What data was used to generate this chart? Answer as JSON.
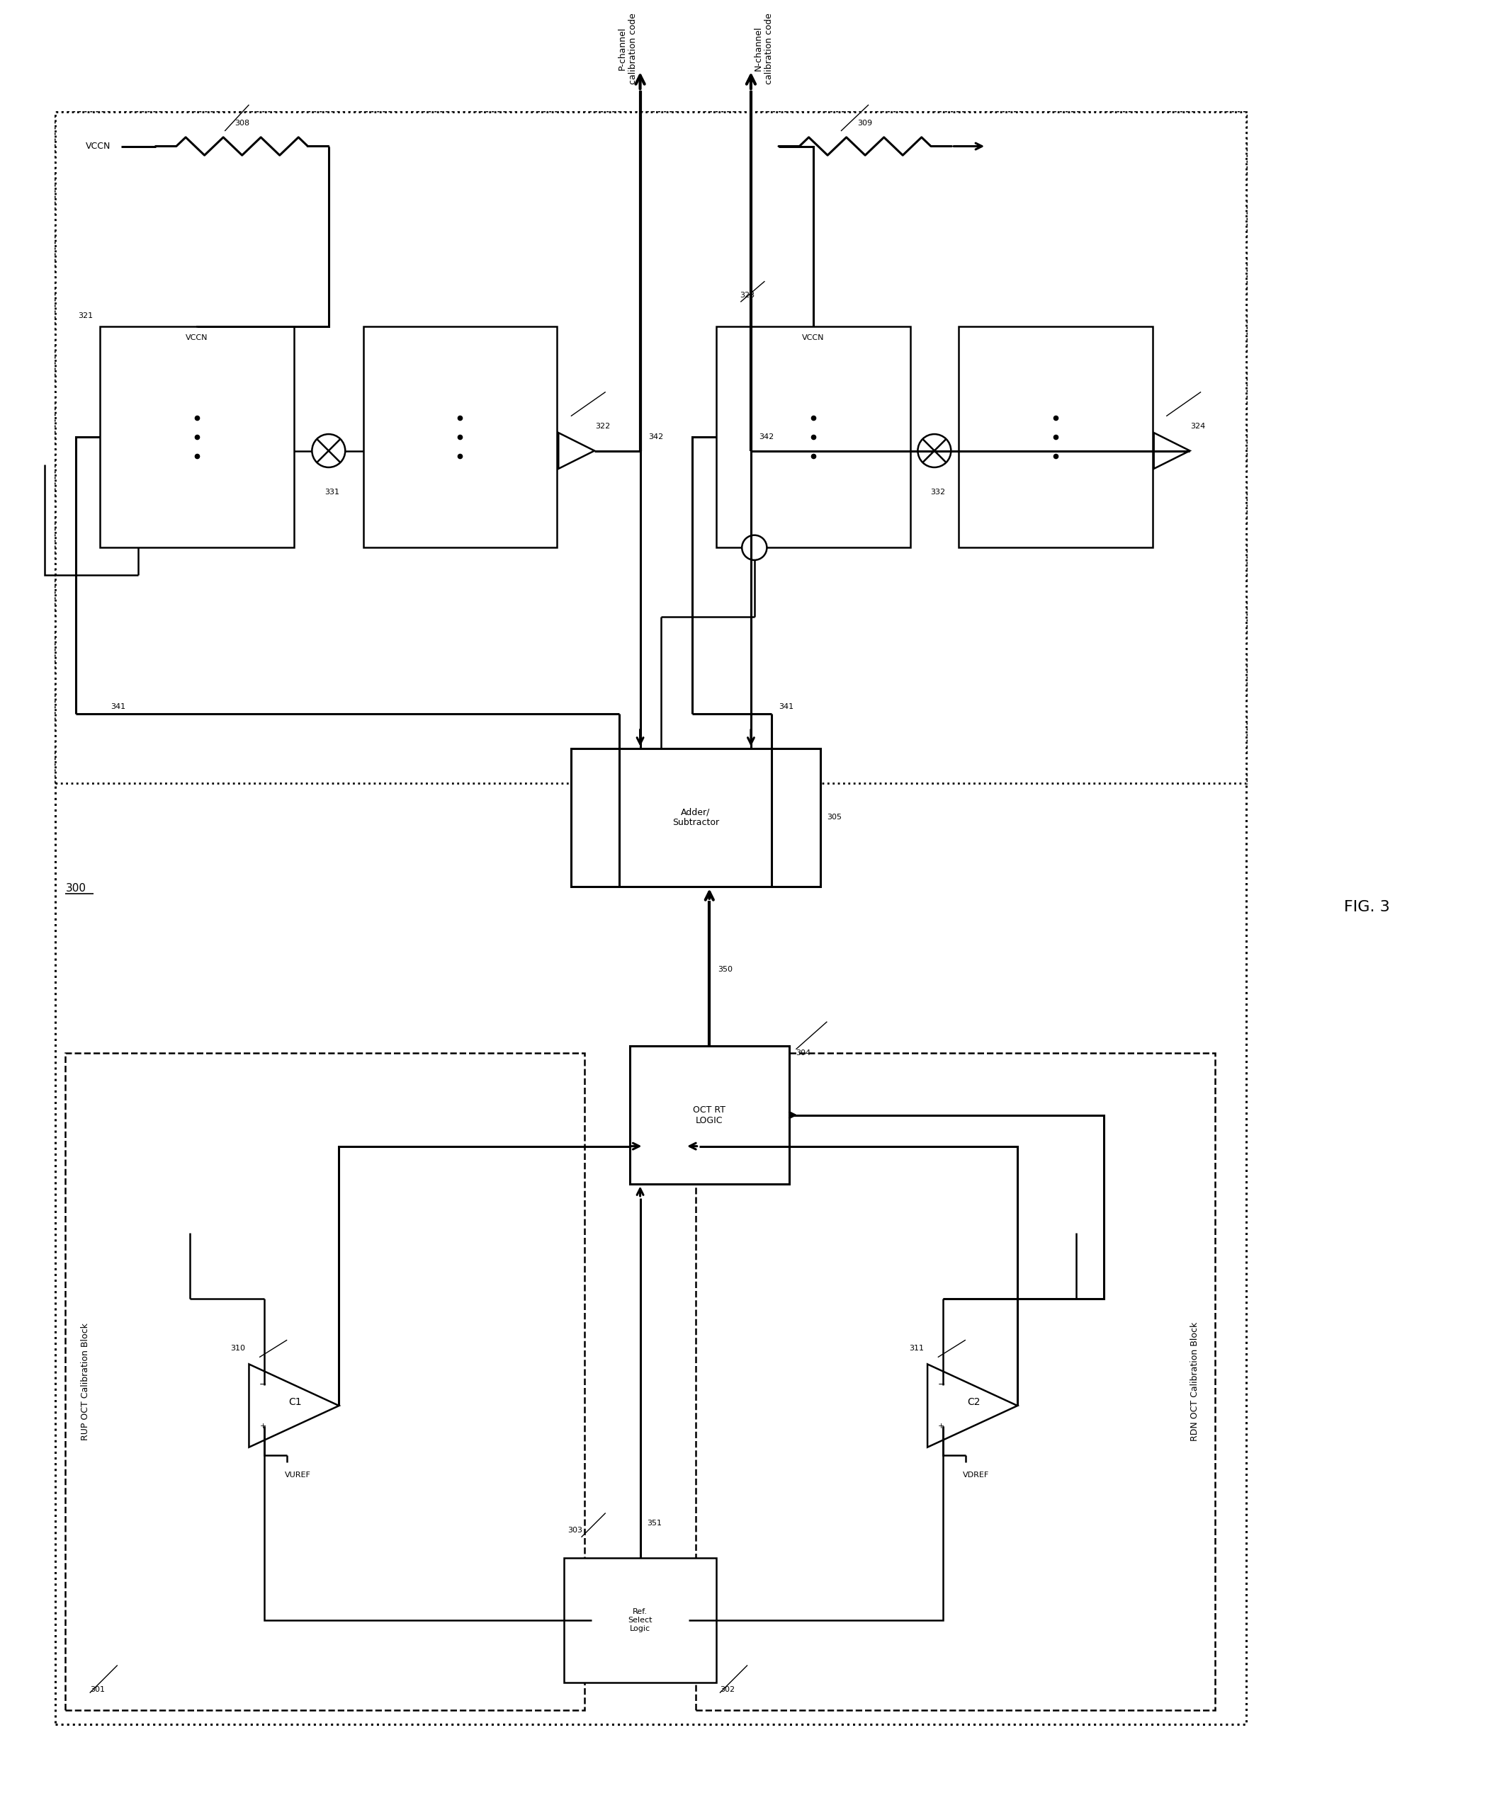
{
  "fig_width": 21.13,
  "fig_height": 25.56,
  "bg_color": "#ffffff",
  "fig_label": "FIG. 3",
  "system_label": "300",
  "rup_label": "301",
  "rdn_label": "302",
  "ref_select_label": "303",
  "oct_rt_label": "304",
  "adder_label": "305",
  "resistor1_label": "308",
  "resistor2_label": "309",
  "comp1_label": "C1",
  "comp1_num": "310",
  "comp2_label": "C2",
  "comp2_num": "311",
  "box321_label": "VCCN",
  "box323_label": "VCCN",
  "node321": "321",
  "node322": "322",
  "node323": "323",
  "node324": "324",
  "node331": "331",
  "node332": "332",
  "node341a": "341",
  "node341b": "341",
  "node342a": "342",
  "node342b": "342",
  "node350": "350",
  "node351": "351",
  "pchan_text": "P-channel\ncalibration code",
  "nchan_text": "N-channel\ncalibration code",
  "vuref_text": "VUREF",
  "vdref_text": "VDREF",
  "vccn_text1": "VCCN",
  "vccn_text2": "VCCN",
  "rup_text": "RUP OCT Calibration Block",
  "rdn_text": "RDN OCT Calibration Block",
  "ref_select_text": "Ref.\nSelect\nLogic",
  "oct_rt_text": "OCT RT\nLOGIC",
  "adder_text": "Adder/\nSubtractor"
}
